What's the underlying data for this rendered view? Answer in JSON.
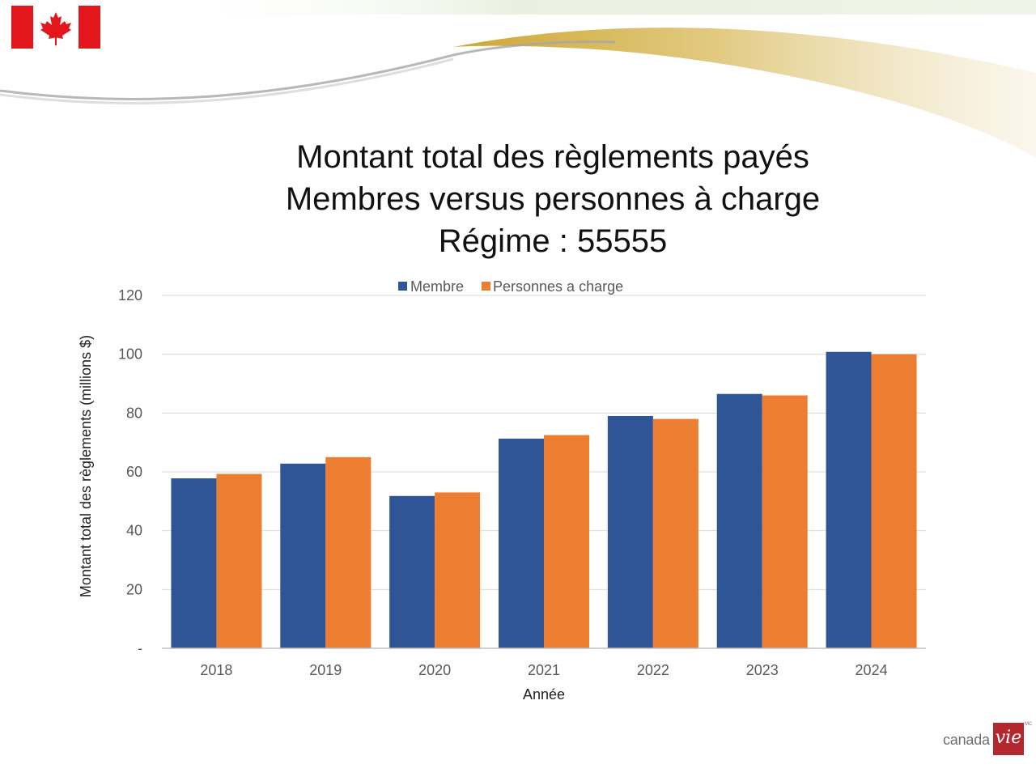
{
  "slide": {
    "title_lines": [
      "Montant total des règlements payés",
      "Membres versus personnes à charge",
      "Régime : 55555"
    ],
    "logo": {
      "word": "canada",
      "mark": "vie",
      "trademark": "MC"
    },
    "flag_icon": "canada-flag-icon"
  },
  "colors": {
    "membre": "#2f5597",
    "personnes": "#ed7d31",
    "grid": "#d9d9d9",
    "accent_gold": "#c9a227",
    "flag_red": "#e3161c"
  },
  "chart_data": {
    "type": "bar",
    "title": "Montant total des règlements payés Membres versus personnes à charge Régime : 55555",
    "categories": [
      "2018",
      "2019",
      "2020",
      "2021",
      "2022",
      "2023",
      "2024"
    ],
    "series": [
      {
        "name": "Membre",
        "values": [
          57.8,
          62.8,
          51.8,
          71.3,
          79.0,
          86.5,
          100.8
        ]
      },
      {
        "name": "Personnes a charge",
        "values": [
          59.3,
          65.0,
          53.0,
          72.5,
          78.0,
          86.0,
          100.0
        ]
      }
    ],
    "xlabel": "Année",
    "ylabel": "Montant total des règlements (millions $)",
    "ylim": [
      0,
      120
    ],
    "yticks": [
      0,
      20,
      40,
      60,
      80,
      100,
      120
    ],
    "ytick_labels": [
      "-",
      "20",
      "40",
      "60",
      "80",
      "100",
      "120"
    ],
    "grid": true,
    "legend_position": "top-center"
  }
}
